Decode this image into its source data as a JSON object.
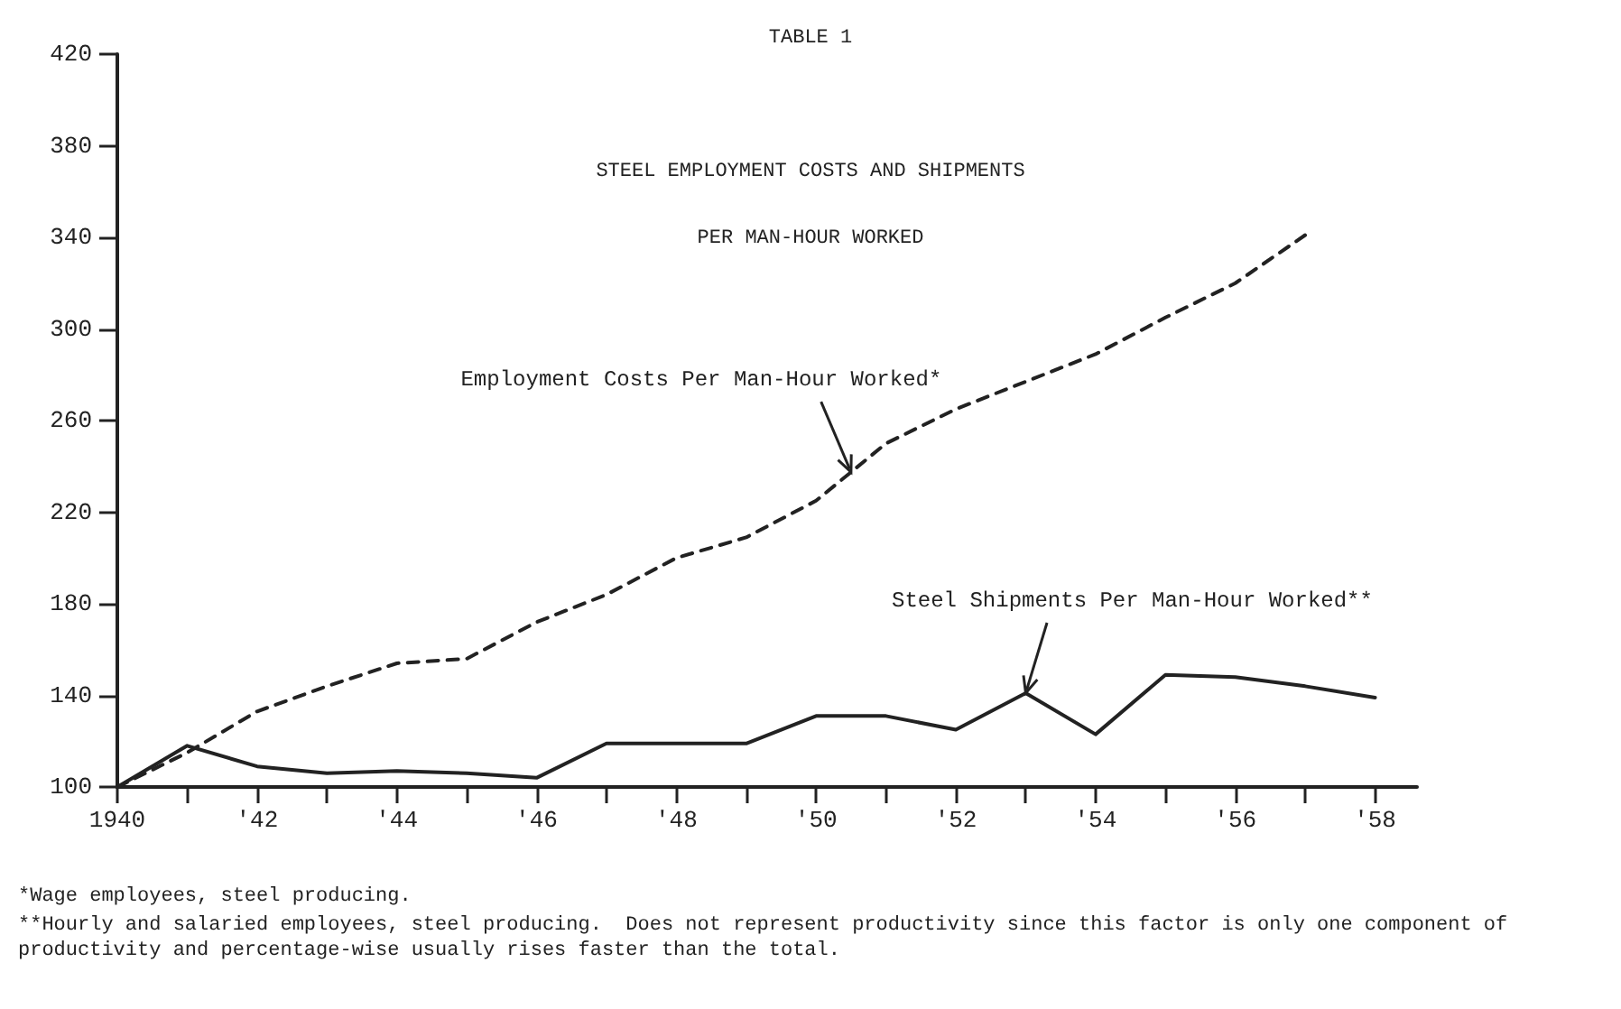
{
  "chart_data": {
    "type": "line",
    "title": "TABLE 1",
    "subtitle": "STEEL EMPLOYMENT COSTS AND SHIPMENTS\nPER MAN-HOUR WORKED",
    "x": [
      1940,
      1941,
      1942,
      1943,
      1944,
      1945,
      1946,
      1947,
      1948,
      1949,
      1950,
      1951,
      1952,
      1953,
      1954,
      1955,
      1956,
      1957,
      1958
    ],
    "series": [
      {
        "name": "Employment Costs Per Man-Hour Worked*",
        "color": "#222222",
        "line_style": "dashed",
        "values": [
          100,
          115,
          133,
          144,
          154,
          156,
          172,
          184,
          200,
          209,
          225,
          250,
          265,
          277,
          289,
          305,
          320,
          341,
          null
        ]
      },
      {
        "name": "Steel Shipments Per Man-Hour Worked**",
        "color": "#222222",
        "line_style": "solid",
        "values": [
          100,
          118,
          109,
          106,
          107,
          106,
          104,
          119,
          119,
          119,
          131,
          131,
          125,
          141,
          123,
          149,
          148,
          144,
          139
        ]
      }
    ],
    "xlim": [
      1940,
      1958.6
    ],
    "xticks": [
      {
        "value": 1940,
        "label": "1940"
      },
      {
        "value": 1941,
        "label": null
      },
      {
        "value": 1942,
        "label": "'42"
      },
      {
        "value": 1943,
        "label": null
      },
      {
        "value": 1944,
        "label": "'44"
      },
      {
        "value": 1945,
        "label": null
      },
      {
        "value": 1946,
        "label": "'46"
      },
      {
        "value": 1947,
        "label": null
      },
      {
        "value": 1948,
        "label": "'48"
      },
      {
        "value": 1949,
        "label": null
      },
      {
        "value": 1950,
        "label": "'50"
      },
      {
        "value": 1951,
        "label": null
      },
      {
        "value": 1952,
        "label": "'52"
      },
      {
        "value": 1953,
        "label": null
      },
      {
        "value": 1954,
        "label": "'54"
      },
      {
        "value": 1955,
        "label": null
      },
      {
        "value": 1956,
        "label": "'56"
      },
      {
        "value": 1957,
        "label": null
      },
      {
        "value": 1958,
        "label": "'58"
      }
    ],
    "ylim": [
      100,
      420
    ],
    "yticks": [
      100,
      140,
      180,
      220,
      260,
      300,
      340,
      380,
      420
    ],
    "grid": false,
    "marker": "none",
    "annotations": [
      "*Wage employees, steel producing.",
      "**Hourly and salaried employees, steel producing.  Does not represent productivity since this factor is only one component of productivity and percentage-wise usually rises faster than the total."
    ]
  }
}
